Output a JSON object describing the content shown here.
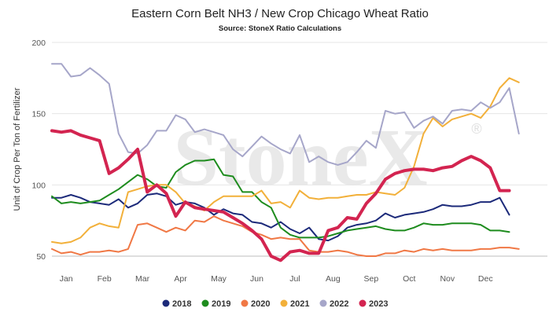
{
  "chart_data": {
    "type": "line",
    "title": "Eastern Corn Belt NH3 / New Crop Chicago Wheat Ratio",
    "subtitle": "Source: StoneX Ratio Calculations",
    "ylabel": "Unit of Crop Per Ton of Fertilizer",
    "watermark": "StoneX",
    "watermark_mark": "®",
    "ylim": [
      50,
      200
    ],
    "xlim": [
      0,
      52
    ],
    "yticks": [
      50,
      100,
      150,
      200
    ],
    "x_ticks": [
      {
        "label": "Jan",
        "x": 1.5
      },
      {
        "label": "Feb",
        "x": 5.5
      },
      {
        "label": "Mar",
        "x": 9.5
      },
      {
        "label": "Apr",
        "x": 13.5
      },
      {
        "label": "May",
        "x": 17.5
      },
      {
        "label": "Jun",
        "x": 21.5
      },
      {
        "label": "Jul",
        "x": 25.5
      },
      {
        "label": "Aug",
        "x": 29.5
      },
      {
        "label": "Sep",
        "x": 33.5
      },
      {
        "label": "Oct",
        "x": 37.5
      },
      {
        "label": "Nov",
        "x": 41.5
      },
      {
        "label": "Dec",
        "x": 45.5
      }
    ],
    "grid": true,
    "legend_position": "bottom",
    "series": [
      {
        "name": "2018",
        "color": "#1c2a7a",
        "width": 2,
        "x": [
          0,
          1,
          2,
          3,
          4,
          5,
          6,
          7,
          8,
          9,
          10,
          11,
          12,
          13,
          14,
          15,
          16,
          17,
          18,
          19,
          20,
          21,
          22,
          23,
          24,
          25,
          26,
          27,
          28,
          29,
          30,
          31,
          32,
          33,
          34,
          35,
          36,
          37,
          38,
          39,
          40,
          41,
          42,
          43,
          44,
          45,
          46,
          47,
          48
        ],
        "y": [
          91,
          91,
          93,
          91,
          88,
          87,
          86,
          90,
          84,
          87,
          93,
          94,
          92,
          86,
          88,
          87,
          84,
          79,
          83,
          80,
          79,
          74,
          73,
          70,
          74,
          69,
          66,
          70,
          62,
          61,
          64,
          70,
          72,
          73,
          75,
          80,
          77,
          79,
          80,
          81,
          83,
          86,
          85,
          85,
          86,
          88,
          88,
          91,
          79
        ]
      },
      {
        "name": "2019",
        "color": "#1e8c1e",
        "width": 2,
        "x": [
          0,
          1,
          2,
          3,
          4,
          5,
          6,
          7,
          8,
          9,
          10,
          11,
          12,
          13,
          14,
          15,
          16,
          17,
          18,
          19,
          20,
          21,
          22,
          23,
          24,
          25,
          26,
          27,
          28,
          29,
          30,
          31,
          32,
          33,
          34,
          35,
          36,
          37,
          38,
          39,
          40,
          41,
          42,
          43,
          44,
          45,
          46,
          47,
          48
        ],
        "y": [
          92,
          87,
          88,
          87,
          88,
          89,
          93,
          97,
          102,
          107,
          104,
          99,
          98,
          109,
          114,
          117,
          117,
          118,
          107,
          106,
          95,
          95,
          88,
          84,
          70,
          65,
          63,
          63,
          63,
          64,
          66,
          68,
          69,
          70,
          71,
          69,
          68,
          68,
          70,
          73,
          72,
          72,
          73,
          73,
          73,
          72,
          68,
          68,
          67
        ]
      },
      {
        "name": "2020",
        "color": "#f07845",
        "width": 2,
        "x": [
          0,
          1,
          2,
          3,
          4,
          5,
          6,
          7,
          8,
          9,
          10,
          11,
          12,
          13,
          14,
          15,
          16,
          17,
          18,
          19,
          20,
          21,
          22,
          23,
          24,
          25,
          26,
          27,
          28,
          29,
          30,
          31,
          32,
          33,
          34,
          35,
          36,
          37,
          38,
          39,
          40,
          41,
          42,
          43,
          44,
          45,
          46,
          47,
          48,
          49
        ],
        "y": [
          55,
          52,
          53,
          51,
          53,
          53,
          54,
          53,
          55,
          72,
          73,
          70,
          67,
          70,
          68,
          75,
          74,
          78,
          75,
          73,
          71,
          67,
          65,
          62,
          63,
          62,
          62,
          54,
          53,
          53,
          54,
          53,
          51,
          50,
          50,
          52,
          52,
          54,
          53,
          55,
          54,
          55,
          54,
          54,
          54,
          55,
          55,
          56,
          56,
          55
        ]
      },
      {
        "name": "2021",
        "color": "#f2b03a",
        "width": 2,
        "x": [
          0,
          1,
          2,
          3,
          4,
          5,
          6,
          7,
          8,
          9,
          10,
          11,
          12,
          13,
          14,
          15,
          16,
          17,
          18,
          19,
          20,
          21,
          22,
          23,
          24,
          25,
          26,
          27,
          28,
          29,
          30,
          31,
          32,
          33,
          34,
          35,
          36,
          37,
          38,
          39,
          40,
          41,
          42,
          43,
          44,
          45,
          46,
          47,
          48,
          49
        ],
        "y": [
          60,
          59,
          60,
          63,
          70,
          73,
          71,
          70,
          95,
          97,
          99,
          100,
          100,
          95,
          87,
          85,
          82,
          88,
          92,
          92,
          92,
          92,
          96,
          87,
          88,
          84,
          96,
          91,
          90,
          91,
          91,
          92,
          93,
          93,
          95,
          94,
          93,
          98,
          113,
          136,
          147,
          141,
          146,
          148,
          150,
          147,
          155,
          168,
          175,
          172
        ]
      },
      {
        "name": "2022",
        "color": "#a6a6c9",
        "width": 2,
        "x": [
          0,
          1,
          2,
          3,
          4,
          5,
          6,
          7,
          8,
          9,
          10,
          11,
          12,
          13,
          14,
          15,
          16,
          17,
          18,
          19,
          20,
          21,
          22,
          23,
          24,
          25,
          26,
          27,
          28,
          29,
          30,
          31,
          32,
          33,
          34,
          35,
          36,
          37,
          38,
          39,
          40,
          41,
          42,
          43,
          44,
          45,
          46,
          47,
          48,
          49
        ],
        "y": [
          185,
          185,
          176,
          177,
          182,
          177,
          171,
          136,
          123,
          122,
          128,
          138,
          138,
          149,
          146,
          137,
          139,
          137,
          135,
          125,
          120,
          127,
          134,
          129,
          125,
          122,
          135,
          116,
          120,
          116,
          114,
          116,
          123,
          131,
          126,
          152,
          150,
          151,
          140,
          145,
          148,
          143,
          152,
          153,
          152,
          158,
          154,
          158,
          168,
          136
        ]
      },
      {
        "name": "2023",
        "color": "#d32450",
        "width": 4,
        "x": [
          0,
          1,
          2,
          3,
          4,
          5,
          6,
          7,
          8,
          9,
          10,
          11,
          12,
          13,
          14,
          15,
          16,
          17,
          18,
          19,
          20,
          21,
          22,
          23,
          24,
          25,
          26,
          27,
          28,
          29,
          30,
          31,
          32,
          33,
          34,
          35,
          36,
          37,
          38,
          39,
          40,
          41,
          42,
          43,
          44,
          45,
          46,
          47,
          48
        ],
        "y": [
          138,
          137,
          138,
          135,
          133,
          131,
          108,
          112,
          118,
          125,
          95,
          100,
          94,
          78,
          88,
          84,
          83,
          82,
          81,
          77,
          73,
          68,
          62,
          50,
          47,
          53,
          54,
          52,
          52,
          68,
          70,
          77,
          76,
          87,
          94,
          104,
          108,
          110,
          111,
          111,
          110,
          112,
          113,
          117,
          120,
          117,
          112,
          96,
          96
        ]
      }
    ]
  }
}
